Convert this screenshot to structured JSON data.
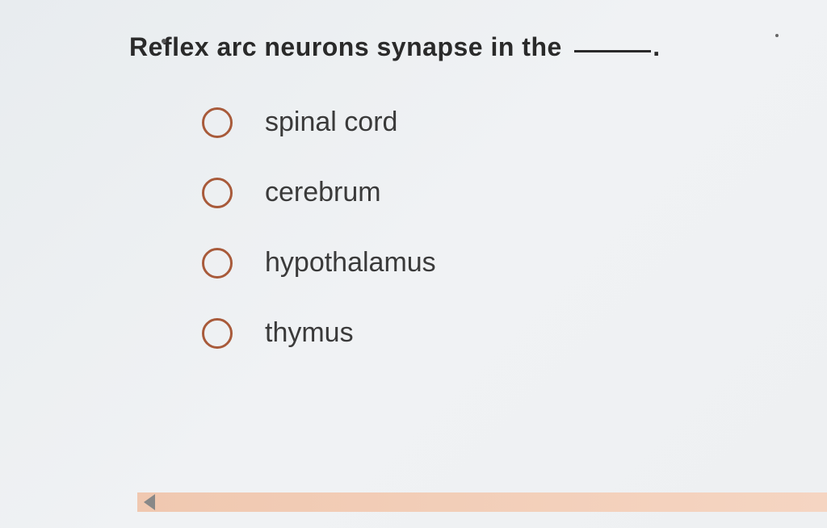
{
  "question": {
    "text_before_blank": "Reflex arc neurons synapse in the",
    "text_after_blank": "."
  },
  "options": [
    {
      "label": "spinal cord"
    },
    {
      "label": "cerebrum"
    },
    {
      "label": "hypothalamus"
    },
    {
      "label": "thymus"
    }
  ],
  "styling": {
    "radio_border_color": "#a85a3a",
    "radio_border_width": 3,
    "radio_size": 38,
    "question_fontsize": 32,
    "option_fontsize": 34,
    "text_color": "#3a3a3a",
    "question_color": "#2a2a2a",
    "background_gradient": [
      "#e8ecef",
      "#f0f2f4"
    ],
    "bottom_bar_color": "#f0c8b0",
    "option_spacing": 48
  }
}
